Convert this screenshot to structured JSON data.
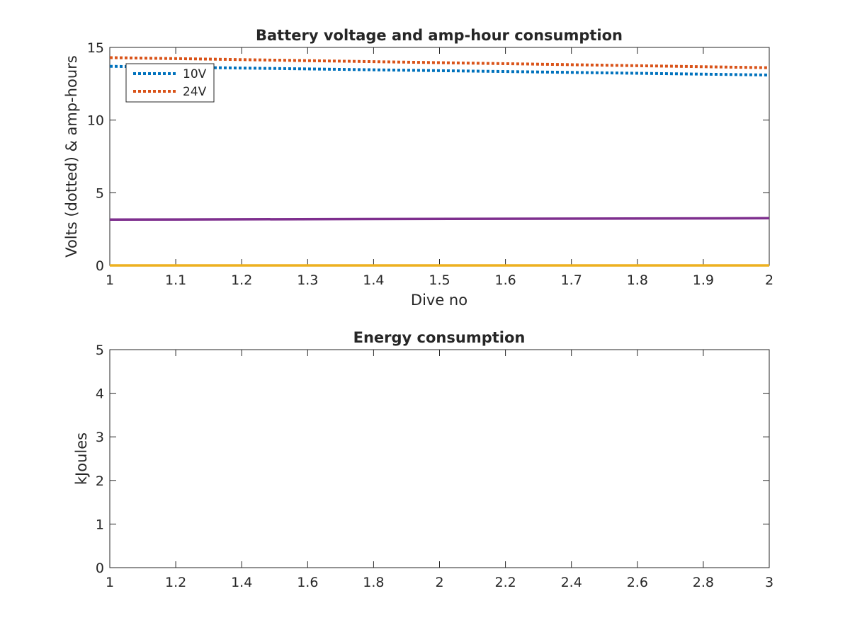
{
  "chart_data": [
    {
      "type": "line",
      "title": "Battery voltage and amp-hour consumption",
      "xlabel": "Dive no",
      "ylabel": "Volts (dotted) & amp-hours",
      "xlim": [
        1,
        2
      ],
      "ylim": [
        0,
        15
      ],
      "xticks": [
        1,
        1.1,
        1.2,
        1.3,
        1.4,
        1.5,
        1.6,
        1.7,
        1.8,
        1.9,
        2
      ],
      "xtick_labels": [
        "1",
        "1.1",
        "1.2",
        "1.3",
        "1.4",
        "1.5",
        "1.6",
        "1.7",
        "1.8",
        "1.9",
        "2"
      ],
      "yticks": [
        0,
        5,
        10,
        15
      ],
      "ytick_labels": [
        "0",
        "5",
        "10",
        "15"
      ],
      "grid": false,
      "legend_placement": "top-left",
      "series": [
        {
          "name": "10V",
          "style": "dotted",
          "color": "#0072BD",
          "x": [
            1,
            2
          ],
          "values": [
            13.7,
            13.1
          ]
        },
        {
          "name": "24V",
          "style": "dotted",
          "color": "#D95319",
          "x": [
            1,
            2
          ],
          "values": [
            14.3,
            13.6
          ]
        },
        {
          "style": "solid",
          "color": "#7E2F8E",
          "x": [
            1,
            2
          ],
          "values": [
            3.15,
            3.25
          ]
        },
        {
          "style": "solid",
          "color": "#EDB120",
          "x": [
            1,
            2
          ],
          "values": [
            0,
            0
          ]
        }
      ]
    },
    {
      "type": "line",
      "title": "Energy consumption",
      "xlabel": "",
      "ylabel": "kJoules",
      "xlim": [
        1,
        3
      ],
      "ylim": [
        0,
        5
      ],
      "xticks": [
        1,
        1.2,
        1.4,
        1.6,
        1.8,
        2,
        2.2,
        2.4,
        2.6,
        2.8,
        3
      ],
      "xtick_labels": [
        "1",
        "1.2",
        "1.4",
        "1.6",
        "1.8",
        "2",
        "2.2",
        "2.4",
        "2.6",
        "2.8",
        "3"
      ],
      "yticks": [
        0,
        1,
        2,
        3,
        4,
        5
      ],
      "ytick_labels": [
        "0",
        "1",
        "2",
        "3",
        "4",
        "5"
      ],
      "grid": false,
      "series": []
    }
  ]
}
